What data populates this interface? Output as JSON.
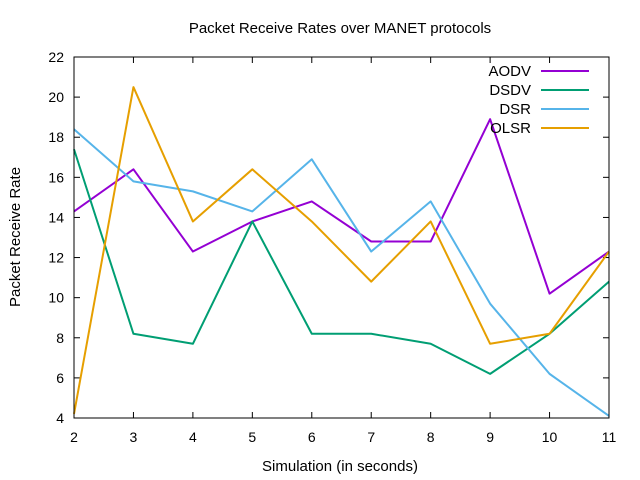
{
  "chart_data": {
    "type": "line",
    "title": "Packet Receive Rates over MANET protocols",
    "xlabel": "Simulation (in seconds)",
    "ylabel": "Packet Receive Rate",
    "x": [
      2,
      3,
      4,
      5,
      6,
      7,
      8,
      9,
      10,
      11
    ],
    "xlim": [
      2,
      11
    ],
    "ylim": [
      4,
      22
    ],
    "xticks": [
      "2",
      "3",
      "4",
      "5",
      "6",
      "7",
      "8",
      "9",
      "10",
      "11"
    ],
    "yticks": [
      "4",
      "6",
      "8",
      "10",
      "12",
      "14",
      "16",
      "18",
      "20",
      "22"
    ],
    "grid": false,
    "legend_position": "top-right",
    "series": [
      {
        "name": "AODV",
        "color": "#9400d3",
        "values": [
          14.3,
          16.4,
          12.3,
          13.8,
          14.8,
          12.8,
          12.8,
          18.9,
          10.2,
          12.3
        ]
      },
      {
        "name": "DSDV",
        "color": "#009e73",
        "values": [
          17.4,
          8.2,
          7.7,
          13.8,
          8.2,
          8.2,
          7.7,
          6.2,
          8.2,
          10.8
        ]
      },
      {
        "name": "DSR",
        "color": "#56b4e9",
        "values": [
          18.4,
          15.8,
          15.3,
          14.3,
          16.9,
          12.3,
          14.8,
          9.7,
          6.2,
          4.1
        ]
      },
      {
        "name": "OLSR",
        "color": "#e69f00",
        "values": [
          4.2,
          20.5,
          13.8,
          16.4,
          13.8,
          10.8,
          13.8,
          7.7,
          8.2,
          12.3
        ]
      }
    ]
  }
}
